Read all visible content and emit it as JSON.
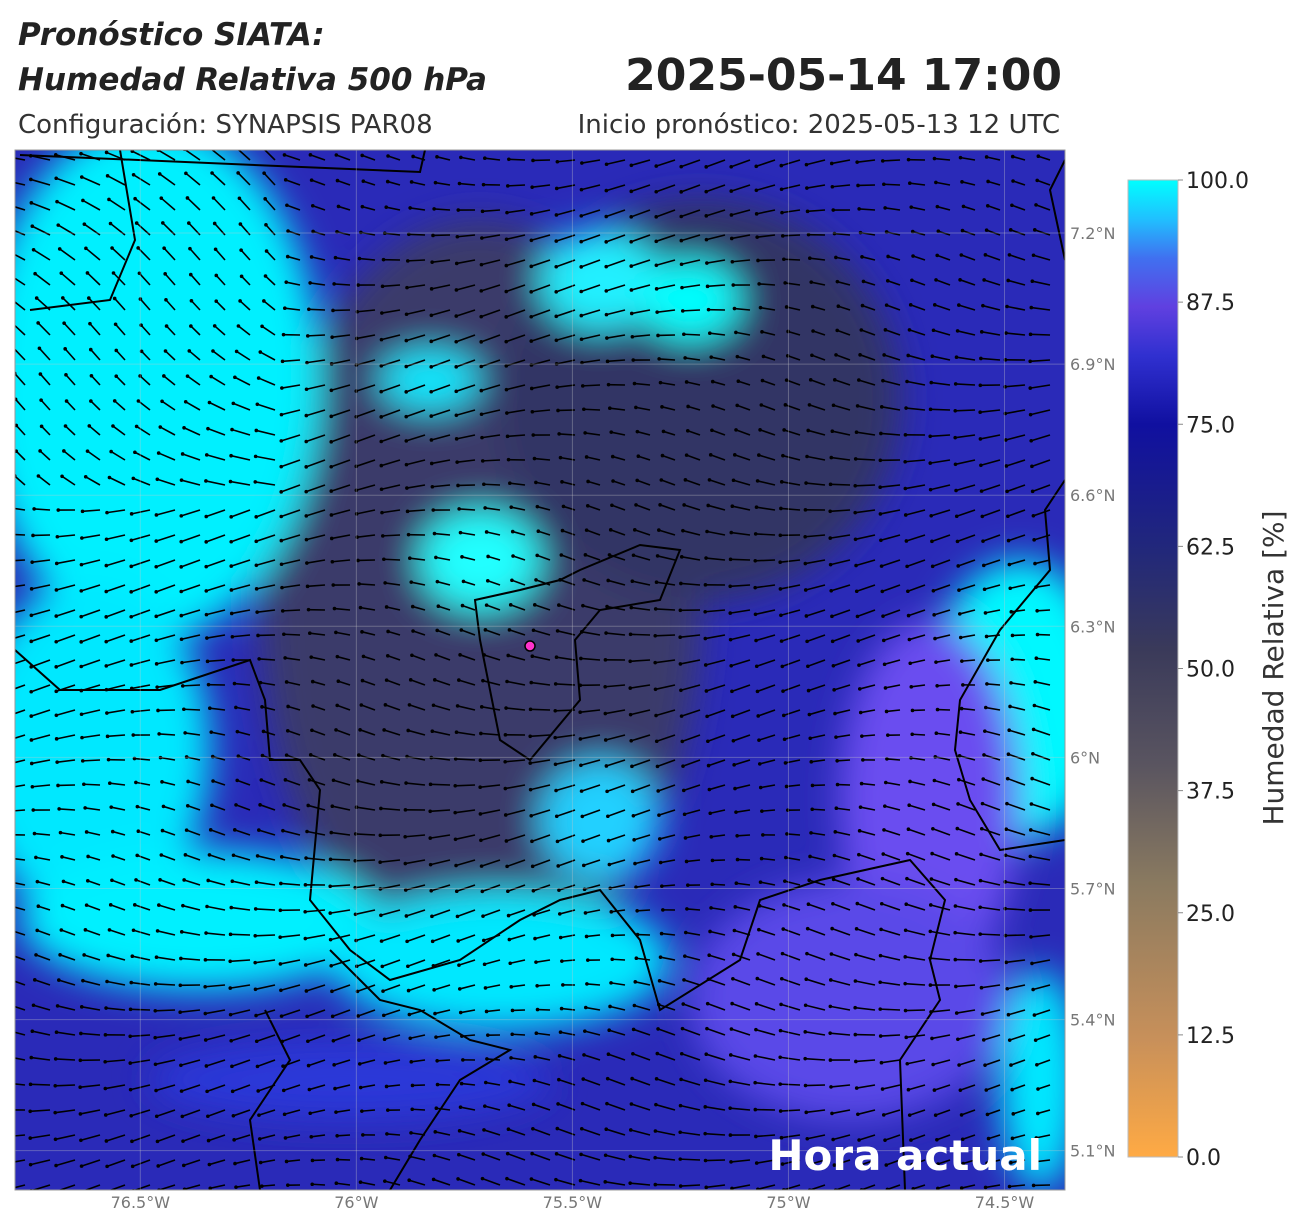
{
  "header": {
    "title_line1": "Pronóstico SIATA:",
    "title_line2": "Humedad Relativa 500 hPa",
    "valid_time": "2025-05-14 17:00",
    "configuration": "Configuración: SYNAPSIS PAR08",
    "forecast_start": "Inicio pronóstico: 2025-05-13 12 UTC"
  },
  "map": {
    "xlim": [
      -76.79,
      -74.36
    ],
    "ylim": [
      5.01,
      7.39
    ],
    "xticks": [
      {
        "value": -76.5,
        "label": "76.5°W"
      },
      {
        "value": -76,
        "label": "76°W"
      },
      {
        "value": -75.5,
        "label": "75.5°W"
      },
      {
        "value": -75,
        "label": "75°W"
      },
      {
        "value": -74.5,
        "label": "74.5°W"
      }
    ],
    "yticks": [
      {
        "value": 7.2,
        "label": "7.2°N"
      },
      {
        "value": 6.9,
        "label": "6.9°N"
      },
      {
        "value": 6.6,
        "label": "6.6°N"
      },
      {
        "value": 6.3,
        "label": "6.3°N"
      },
      {
        "value": 6,
        "label": "6°N"
      },
      {
        "value": 5.7,
        "label": "5.7°N"
      },
      {
        "value": 5.4,
        "label": "5.4°N"
      },
      {
        "value": 5.1,
        "label": "5.1°N"
      }
    ],
    "grid": true,
    "overlay_text": "Hora actual"
  },
  "colorbar": {
    "label": "Humedad Relativa [%]",
    "lim": [
      0,
      100
    ],
    "ticks": [
      {
        "value": 0,
        "label": "0.0"
      },
      {
        "value": 12.5,
        "label": "12.5"
      },
      {
        "value": 25,
        "label": "25.0"
      },
      {
        "value": 37.5,
        "label": "37.5"
      },
      {
        "value": 50,
        "label": "50.0"
      },
      {
        "value": 62.5,
        "label": "62.5"
      },
      {
        "value": 75,
        "label": "75.0"
      },
      {
        "value": 87.5,
        "label": "87.5"
      },
      {
        "value": 100,
        "label": "100.0"
      }
    ]
  }
}
